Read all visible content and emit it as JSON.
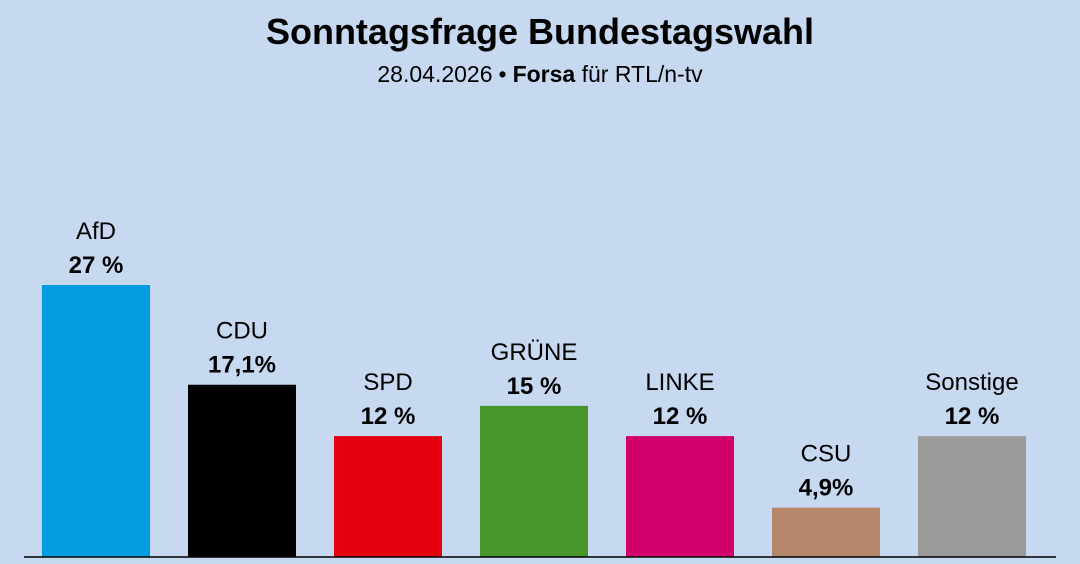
{
  "header": {
    "title": "Sonntagsfrage Bundestagswahl",
    "date": "28.04.2026",
    "separator": "•",
    "institute": "Forsa",
    "client": "für RTL/n-tv"
  },
  "chart_data": {
    "type": "bar",
    "title": "Sonntagsfrage Bundestagswahl",
    "subtitle": "28.04.2026 • Forsa für RTL/n-tv",
    "categories": [
      "AfD",
      "CDU",
      "SPD",
      "GRÜNE",
      "LINKE",
      "CSU",
      "Sonstige"
    ],
    "values": [
      27,
      17.1,
      12,
      15,
      12,
      4.9,
      12
    ],
    "value_labels": [
      "27 %",
      "17,1%",
      "12 %",
      "15 %",
      "12 %",
      "4,9%",
      "12 %"
    ],
    "colors": [
      "#009ee0",
      "#000000",
      "#e3000f",
      "#46962b",
      "#d2006b",
      "#b5876a",
      "#9b9b9b"
    ],
    "ylim": [
      0,
      27
    ],
    "grid": false,
    "legend": "none"
  }
}
